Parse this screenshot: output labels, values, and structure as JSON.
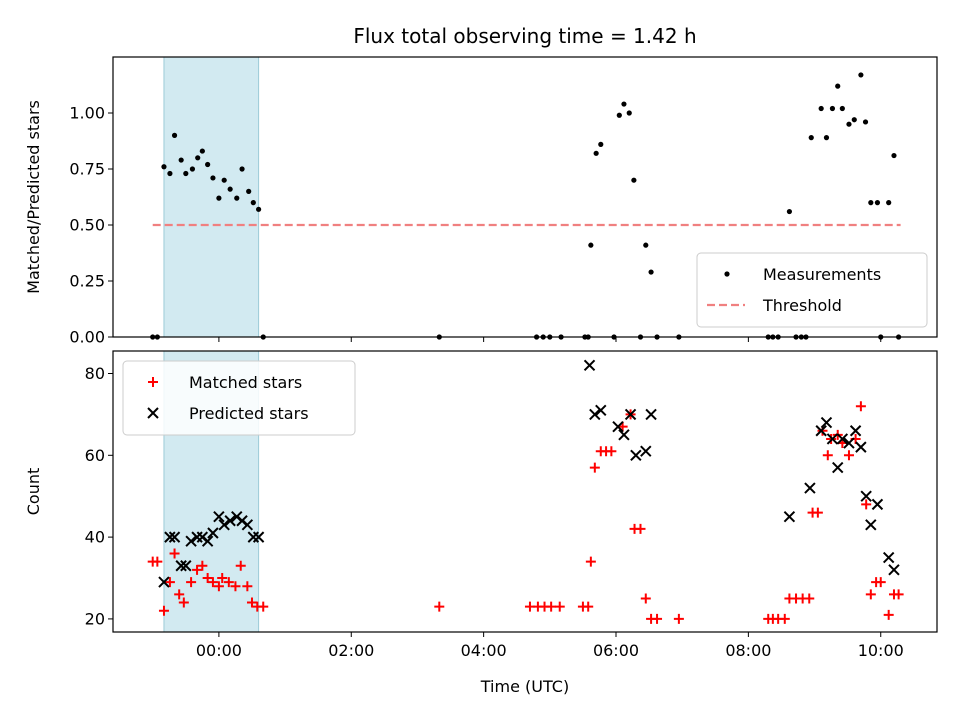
{
  "chart_data": [
    {
      "type": "scatter",
      "title": "Flux total observing time = 1.42 h",
      "ylabel": "Matched/Predicted stars",
      "xlabel": "",
      "x_unit": "hours UTC",
      "xlim": [
        -1.6,
        10.85
      ],
      "ylim": [
        0,
        1.25
      ],
      "yticks": [
        0.0,
        0.25,
        0.5,
        0.75,
        1.0
      ],
      "ytick_labels": [
        "0.00",
        "0.25",
        "0.50",
        "0.75",
        "1.00"
      ],
      "xticks": [
        0,
        2,
        4,
        6,
        8,
        10
      ],
      "xtick_labels": [
        "",
        "",
        "",
        "",
        "",
        ""
      ],
      "grid": false,
      "legend_position": "lower-right",
      "shaded_interval": {
        "x": [
          -0.83,
          0.6
        ],
        "color": "#add8e6"
      },
      "series": [
        {
          "name": "Measurements",
          "marker": "dot",
          "color": "#000000",
          "points": [
            [
              -1.0,
              0.0
            ],
            [
              -0.93,
              0.0
            ],
            [
              -0.83,
              0.76
            ],
            [
              -0.74,
              0.73
            ],
            [
              -0.67,
              0.9
            ],
            [
              -0.57,
              0.79
            ],
            [
              -0.5,
              0.73
            ],
            [
              -0.4,
              0.75
            ],
            [
              -0.32,
              0.8
            ],
            [
              -0.25,
              0.83
            ],
            [
              -0.17,
              0.77
            ],
            [
              -0.09,
              0.71
            ],
            [
              0.0,
              0.62
            ],
            [
              0.08,
              0.7
            ],
            [
              0.17,
              0.66
            ],
            [
              0.27,
              0.62
            ],
            [
              0.35,
              0.75
            ],
            [
              0.45,
              0.65
            ],
            [
              0.52,
              0.6
            ],
            [
              0.6,
              0.57
            ],
            [
              0.67,
              0.0
            ],
            [
              3.33,
              0.0
            ],
            [
              4.8,
              0.0
            ],
            [
              4.9,
              0.0
            ],
            [
              5.0,
              0.0
            ],
            [
              5.17,
              0.0
            ],
            [
              5.53,
              0.0
            ],
            [
              5.58,
              0.0
            ],
            [
              5.62,
              0.41
            ],
            [
              5.7,
              0.82
            ],
            [
              5.77,
              0.86
            ],
            [
              5.97,
              0.0
            ],
            [
              6.05,
              0.99
            ],
            [
              6.12,
              1.04
            ],
            [
              6.2,
              1.0
            ],
            [
              6.27,
              0.7
            ],
            [
              6.37,
              0.0
            ],
            [
              6.45,
              0.41
            ],
            [
              6.53,
              0.29
            ],
            [
              6.62,
              0.0
            ],
            [
              6.95,
              0.0
            ],
            [
              8.3,
              0.0
            ],
            [
              8.37,
              0.0
            ],
            [
              8.45,
              0.0
            ],
            [
              8.62,
              0.56
            ],
            [
              8.72,
              0.0
            ],
            [
              8.8,
              0.0
            ],
            [
              8.87,
              0.0
            ],
            [
              8.95,
              0.89
            ],
            [
              9.1,
              1.02
            ],
            [
              9.18,
              0.89
            ],
            [
              9.27,
              1.02
            ],
            [
              9.35,
              1.12
            ],
            [
              9.42,
              1.02
            ],
            [
              9.52,
              0.95
            ],
            [
              9.6,
              0.97
            ],
            [
              9.7,
              1.17
            ],
            [
              9.77,
              0.96
            ],
            [
              9.85,
              0.6
            ],
            [
              9.95,
              0.6
            ],
            [
              10.0,
              0.0
            ],
            [
              10.12,
              0.6
            ],
            [
              10.2,
              0.81
            ],
            [
              10.27,
              0.0
            ]
          ]
        },
        {
          "name": "Threshold",
          "line": "dashed",
          "color": "#f08080",
          "points": [
            [
              -1.0,
              0.5
            ],
            [
              10.3,
              0.5
            ]
          ]
        }
      ]
    },
    {
      "type": "scatter",
      "title": "",
      "ylabel": "Count",
      "xlabel": "Time (UTC)",
      "x_unit": "hours UTC",
      "xlim": [
        -1.6,
        10.85
      ],
      "ylim": [
        16.8,
        85.5
      ],
      "yticks": [
        20,
        40,
        60,
        80
      ],
      "ytick_labels": [
        "20",
        "40",
        "60",
        "80"
      ],
      "xticks": [
        0,
        2,
        4,
        6,
        8,
        10
      ],
      "xtick_labels": [
        "00:00",
        "02:00",
        "04:00",
        "06:00",
        "08:00",
        "10:00"
      ],
      "grid": false,
      "legend_position": "upper-left",
      "shaded_interval": {
        "x": [
          -0.83,
          0.6
        ],
        "color": "#add8e6"
      },
      "series": [
        {
          "name": "Matched stars",
          "marker": "plus",
          "color": "#ff0000",
          "points": [
            [
              -1.0,
              34
            ],
            [
              -0.93,
              34
            ],
            [
              -0.83,
              22
            ],
            [
              -0.74,
              29
            ],
            [
              -0.67,
              36
            ],
            [
              -0.6,
              26
            ],
            [
              -0.53,
              24
            ],
            [
              -0.42,
              29
            ],
            [
              -0.33,
              32
            ],
            [
              -0.25,
              33
            ],
            [
              -0.17,
              30
            ],
            [
              -0.09,
              29
            ],
            [
              0.0,
              28
            ],
            [
              0.05,
              30
            ],
            [
              0.15,
              29
            ],
            [
              0.25,
              28
            ],
            [
              0.33,
              33
            ],
            [
              0.43,
              28
            ],
            [
              0.5,
              24
            ],
            [
              0.58,
              23
            ],
            [
              0.67,
              23
            ],
            [
              3.33,
              23
            ],
            [
              4.7,
              23
            ],
            [
              4.82,
              23
            ],
            [
              4.92,
              23
            ],
            [
              5.02,
              23
            ],
            [
              5.15,
              23
            ],
            [
              5.5,
              23
            ],
            [
              5.58,
              23
            ],
            [
              5.62,
              34
            ],
            [
              5.68,
              57
            ],
            [
              5.77,
              61
            ],
            [
              5.85,
              61
            ],
            [
              5.93,
              61
            ],
            [
              6.1,
              67
            ],
            [
              6.22,
              70
            ],
            [
              6.28,
              42
            ],
            [
              6.37,
              42
            ],
            [
              6.45,
              25
            ],
            [
              6.53,
              20
            ],
            [
              6.62,
              20
            ],
            [
              6.95,
              20
            ],
            [
              8.3,
              20
            ],
            [
              8.37,
              20
            ],
            [
              8.45,
              20
            ],
            [
              8.55,
              20
            ],
            [
              8.62,
              25
            ],
            [
              8.72,
              25
            ],
            [
              8.82,
              25
            ],
            [
              8.92,
              25
            ],
            [
              8.97,
              46
            ],
            [
              9.05,
              46
            ],
            [
              9.12,
              66
            ],
            [
              9.2,
              60
            ],
            [
              9.25,
              64
            ],
            [
              9.35,
              65
            ],
            [
              9.42,
              63
            ],
            [
              9.52,
              60
            ],
            [
              9.62,
              64
            ],
            [
              9.7,
              72
            ],
            [
              9.78,
              48
            ],
            [
              9.85,
              26
            ],
            [
              9.93,
              29
            ],
            [
              10.0,
              29
            ],
            [
              10.12,
              21
            ],
            [
              10.2,
              26
            ],
            [
              10.27,
              26
            ]
          ]
        },
        {
          "name": "Predicted stars",
          "marker": "x",
          "color": "#000000",
          "points": [
            [
              -0.83,
              29
            ],
            [
              -0.74,
              40
            ],
            [
              -0.67,
              40
            ],
            [
              -0.57,
              33
            ],
            [
              -0.5,
              33
            ],
            [
              -0.42,
              39
            ],
            [
              -0.33,
              40
            ],
            [
              -0.25,
              40
            ],
            [
              -0.17,
              39
            ],
            [
              -0.09,
              41
            ],
            [
              0.0,
              45
            ],
            [
              0.08,
              43
            ],
            [
              0.17,
              44
            ],
            [
              0.27,
              45
            ],
            [
              0.35,
              44
            ],
            [
              0.43,
              43
            ],
            [
              0.52,
              40
            ],
            [
              0.6,
              40
            ],
            [
              5.6,
              82
            ],
            [
              5.68,
              70
            ],
            [
              5.77,
              71
            ],
            [
              6.03,
              67
            ],
            [
              6.12,
              65
            ],
            [
              6.22,
              70
            ],
            [
              6.3,
              60
            ],
            [
              6.45,
              61
            ],
            [
              6.53,
              70
            ],
            [
              8.62,
              45
            ],
            [
              8.93,
              52
            ],
            [
              9.1,
              66
            ],
            [
              9.18,
              68
            ],
            [
              9.27,
              64
            ],
            [
              9.35,
              57
            ],
            [
              9.42,
              64
            ],
            [
              9.52,
              63
            ],
            [
              9.62,
              66
            ],
            [
              9.7,
              62
            ],
            [
              9.78,
              50
            ],
            [
              9.85,
              43
            ],
            [
              9.95,
              48
            ],
            [
              10.12,
              35
            ],
            [
              10.2,
              32
            ]
          ]
        }
      ]
    }
  ]
}
